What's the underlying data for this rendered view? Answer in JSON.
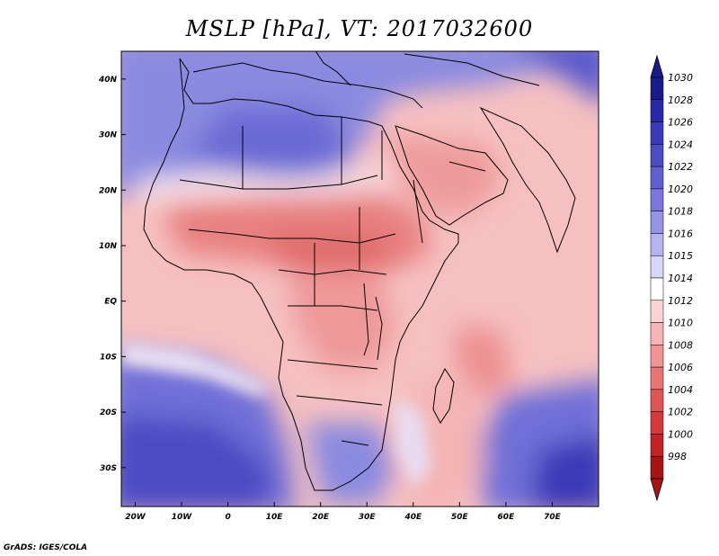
{
  "title": "MSLP [hPa], VT: 2017032600",
  "credit": "GrADS: IGES/COLA",
  "map": {
    "lon_range": [
      -23,
      80
    ],
    "lat_range": [
      -37,
      45
    ],
    "lat_ticks": [
      {
        "value": 40,
        "label": "40N"
      },
      {
        "value": 30,
        "label": "30N"
      },
      {
        "value": 20,
        "label": "20N"
      },
      {
        "value": 10,
        "label": "10N"
      },
      {
        "value": 0,
        "label": "EQ"
      },
      {
        "value": -10,
        "label": "10S"
      },
      {
        "value": -20,
        "label": "20S"
      },
      {
        "value": -30,
        "label": "30S"
      }
    ],
    "lon_ticks": [
      {
        "value": -20,
        "label": "20W"
      },
      {
        "value": -10,
        "label": "10W"
      },
      {
        "value": 0,
        "label": "0"
      },
      {
        "value": 10,
        "label": "10E"
      },
      {
        "value": 20,
        "label": "20E"
      },
      {
        "value": 30,
        "label": "30E"
      },
      {
        "value": 40,
        "label": "40E"
      },
      {
        "value": 50,
        "label": "50E"
      },
      {
        "value": 60,
        "label": "60E"
      },
      {
        "value": 70,
        "label": "70E"
      }
    ]
  },
  "colorbar": {
    "labels": [
      "1030",
      "1028",
      "1026",
      "1024",
      "1022",
      "1020",
      "1018",
      "1016",
      "1015",
      "1014",
      "1012",
      "1010",
      "1008",
      "1006",
      "1004",
      "1002",
      "1000",
      "998"
    ],
    "colors": [
      "#1a1a8c",
      "#2828a8",
      "#3a3ab8",
      "#4c4cc4",
      "#6060d0",
      "#7878dc",
      "#9494e6",
      "#b4b4f0",
      "#d6d6f8",
      "#ffffff",
      "#fcd2d2",
      "#f8b4b4",
      "#f09494",
      "#e87474",
      "#e05656",
      "#d43a3a",
      "#c02424",
      "#a81414"
    ]
  }
}
